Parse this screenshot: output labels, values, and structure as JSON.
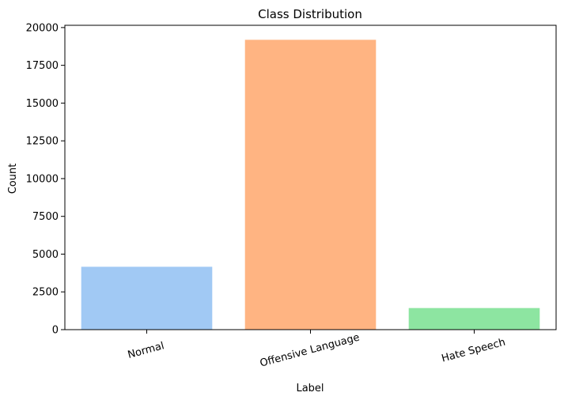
{
  "chart_data": {
    "type": "bar",
    "title": "Class Distribution",
    "xlabel": "Label",
    "ylabel": "Count",
    "categories": [
      "Normal",
      "Offensive Language",
      "Hate Speech"
    ],
    "values": [
      4163,
      19190,
      1430
    ],
    "colors": [
      "#a1c9f4",
      "#ffb482",
      "#8de5a1"
    ],
    "ylim": [
      0,
      20150
    ],
    "yticks": [
      0,
      2500,
      5000,
      7500,
      10000,
      12500,
      15000,
      17500,
      20000
    ],
    "ytick_labels": [
      "0",
      "2500",
      "5000",
      "7500",
      "10000",
      "12500",
      "15000",
      "17500",
      "20000"
    ],
    "xtick_rotation": -15,
    "grid": false,
    "legend": false
  }
}
